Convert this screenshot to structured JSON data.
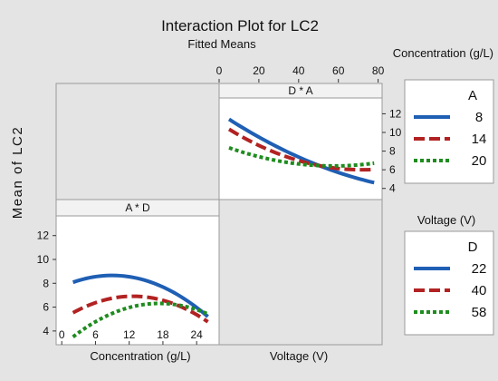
{
  "chart_data": {
    "type": "line",
    "title": "Interaction Plot for LC2",
    "subtitle": "Fitted Means",
    "ylabel": "Mean of LC2",
    "panels": [
      {
        "name": "D * A",
        "x_var": "Concentration (g/L)",
        "xlim": [
          0,
          82
        ],
        "x_ticks": [
          0,
          20,
          40,
          60,
          80
        ],
        "ylim": [
          3,
          13.5
        ],
        "y_ticks": [
          4,
          6,
          8,
          10,
          12
        ],
        "legend_var": "A",
        "series": [
          {
            "name": "8",
            "x": [
              5,
              20,
              40,
              60,
              78
            ],
            "y": [
              11.5,
              9.3,
              7.5,
              5.7,
              4.6
            ]
          },
          {
            "name": "14",
            "x": [
              5,
              20,
              40,
              60,
              78
            ],
            "y": [
              10.4,
              8.5,
              7.0,
              6.2,
              6.0
            ]
          },
          {
            "name": "20",
            "x": [
              5,
              20,
              40,
              60,
              78
            ],
            "y": [
              8.4,
              7.3,
              6.7,
              6.4,
              6.7
            ]
          }
        ]
      },
      {
        "name": "A * D",
        "x_var": "Concentration (g/L)",
        "xlim": [
          -1,
          28
        ],
        "x_ticks": [
          0,
          6,
          12,
          18,
          24
        ],
        "ylim": [
          3,
          13.5
        ],
        "y_ticks": [
          4,
          6,
          8,
          10,
          12
        ],
        "legend_var": "D",
        "series": [
          {
            "name": "22",
            "x": [
              2,
              8,
              14,
              20,
              26
            ],
            "y": [
              8.1,
              8.6,
              8.4,
              7.2,
              5.2
            ]
          },
          {
            "name": "40",
            "x": [
              2,
              8,
              14,
              20,
              26
            ],
            "y": [
              5.5,
              6.7,
              6.9,
              6.2,
              4.8
            ]
          },
          {
            "name": "58",
            "x": [
              2,
              8,
              14,
              20,
              26
            ],
            "y": [
              3.5,
              5.3,
              6.1,
              6.3,
              5.4
            ]
          }
        ]
      }
    ],
    "grid": false,
    "outer_labels": {
      "top_right": "Concentration (g/L)",
      "right_middle": "Voltage (V)",
      "bottom_left": "Concentration (g/L)",
      "bottom_middle": "Voltage (V)"
    },
    "legends": [
      {
        "title": "A",
        "entries": [
          "8",
          "14",
          "20"
        ]
      },
      {
        "title": "D",
        "entries": [
          "22",
          "40",
          "58"
        ]
      }
    ],
    "colors": {
      "series1": "#1f5fb4",
      "series2": "#b22222",
      "series3": "#1e8c1e",
      "background": "#e4e4e4"
    }
  }
}
